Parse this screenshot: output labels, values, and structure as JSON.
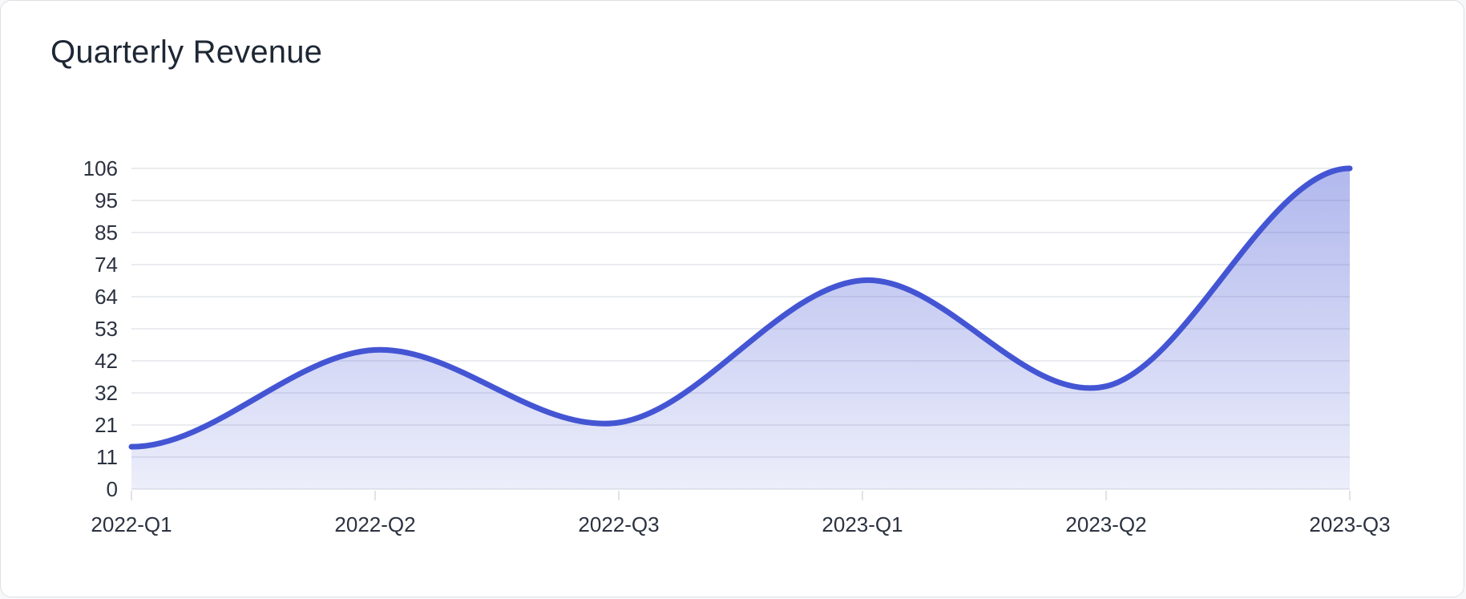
{
  "page": {
    "title": "Quarterly Revenue"
  },
  "chart_data": {
    "type": "area",
    "title": "Quarterly Revenue",
    "categories": [
      "2022-Q1",
      "2022-Q2",
      "2022-Q3",
      "2023-Q1",
      "2023-Q2",
      "2023-Q3"
    ],
    "values": [
      14,
      46,
      22,
      69,
      34,
      106
    ],
    "xlabel": "",
    "ylabel": "",
    "ylim": [
      0,
      106
    ],
    "y_tick_labels": [
      "0",
      "11",
      "21",
      "32",
      "42",
      "53",
      "64",
      "74",
      "85",
      "95",
      "106"
    ],
    "grid": true,
    "smooth": true,
    "legend": "none",
    "colors": {
      "line": "#4455d4",
      "fill": "#4556d4",
      "fill_top_opacity": "0.42",
      "fill_bottom_opacity": "0.10",
      "grid": "#e4e5ea",
      "axis_label": "#2b3240",
      "title": "#1e2734"
    }
  }
}
